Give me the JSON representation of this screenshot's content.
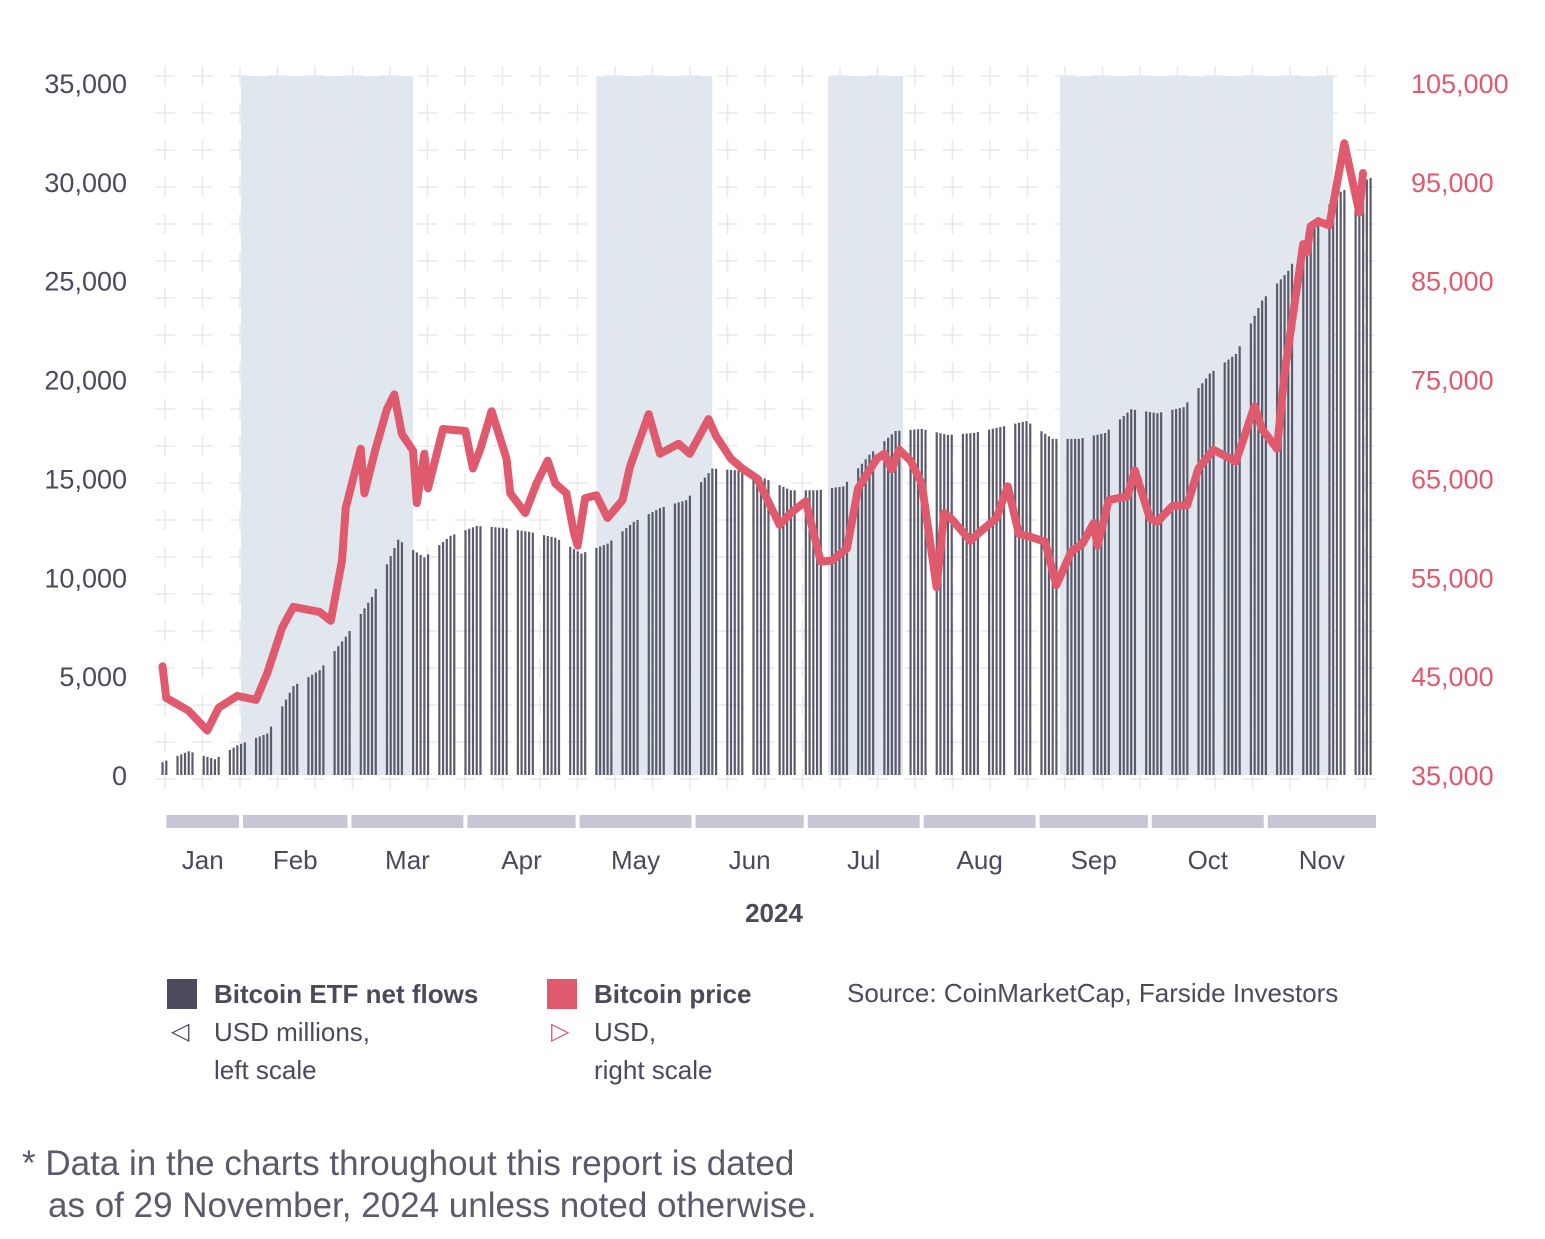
{
  "chart_data": {
    "type": "bar+line",
    "xlabel": "2024",
    "x_tick_labels": [
      "Jan",
      "Feb",
      "Mar",
      "Apr",
      "May",
      "Jun",
      "Jul",
      "Aug",
      "Sep",
      "Oct",
      "Nov"
    ],
    "left_axis": {
      "ticks": [
        "0",
        "5,000",
        "10,000",
        "15,000",
        "20,000",
        "25,000",
        "30,000",
        "35,000"
      ],
      "range": [
        0,
        35000
      ]
    },
    "right_axis": {
      "ticks": [
        "35,000",
        "45,000",
        "55,000",
        "65,000",
        "75,000",
        "85,000",
        "95,000",
        "105,000"
      ],
      "range": [
        35000,
        105000
      ]
    },
    "grid": true,
    "shaded_periods": [
      [
        "2024-02-01",
        "2024-03-18"
      ],
      [
        "2024-05-06",
        "2024-06-06"
      ],
      [
        "2024-07-07",
        "2024-07-27"
      ],
      [
        "2024-09-07",
        "2024-11-19"
      ]
    ],
    "series": [
      {
        "name": "Bitcoin ETF net flows",
        "type": "bar",
        "axis": "left",
        "color": "#5b5b6b",
        "points": [
          [
            "2024-01-11",
            650
          ],
          [
            "2024-01-18",
            1200
          ],
          [
            "2024-01-25",
            800
          ],
          [
            "2024-01-31",
            1500
          ],
          [
            "2024-02-08",
            2100
          ],
          [
            "2024-02-15",
            4500
          ],
          [
            "2024-02-22",
            5300
          ],
          [
            "2024-02-29",
            7000
          ],
          [
            "2024-03-07",
            9000
          ],
          [
            "2024-03-14",
            11900
          ],
          [
            "2024-03-21",
            11000
          ],
          [
            "2024-03-28",
            12100
          ],
          [
            "2024-04-04",
            12600
          ],
          [
            "2024-04-11",
            12500
          ],
          [
            "2024-04-18",
            12300
          ],
          [
            "2024-04-25",
            12000
          ],
          [
            "2024-05-02",
            11200
          ],
          [
            "2024-05-09",
            11700
          ],
          [
            "2024-05-16",
            12800
          ],
          [
            "2024-05-23",
            13500
          ],
          [
            "2024-05-30",
            13900
          ],
          [
            "2024-06-06",
            15500
          ],
          [
            "2024-06-13",
            15400
          ],
          [
            "2024-06-20",
            15000
          ],
          [
            "2024-06-27",
            14400
          ],
          [
            "2024-07-04",
            14400
          ],
          [
            "2024-07-11",
            14600
          ],
          [
            "2024-07-18",
            16200
          ],
          [
            "2024-07-25",
            17400
          ],
          [
            "2024-08-01",
            17500
          ],
          [
            "2024-08-08",
            17200
          ],
          [
            "2024-08-15",
            17300
          ],
          [
            "2024-08-22",
            17600
          ],
          [
            "2024-08-29",
            17900
          ],
          [
            "2024-09-05",
            17000
          ],
          [
            "2024-09-12",
            17000
          ],
          [
            "2024-09-19",
            17300
          ],
          [
            "2024-09-26",
            18500
          ],
          [
            "2024-10-03",
            18300
          ],
          [
            "2024-10-10",
            18600
          ],
          [
            "2024-10-17",
            20300
          ],
          [
            "2024-10-24",
            21300
          ],
          [
            "2024-10-31",
            24000
          ],
          [
            "2024-11-07",
            25500
          ],
          [
            "2024-11-14",
            28000
          ],
          [
            "2024-11-21",
            29500
          ],
          [
            "2024-11-29",
            30200
          ]
        ]
      },
      {
        "name": "Bitcoin price",
        "type": "line",
        "axis": "right",
        "color": "#e05a6e",
        "points": [
          [
            "2024-01-11",
            46000
          ],
          [
            "2024-01-12",
            42800
          ],
          [
            "2024-01-18",
            41500
          ],
          [
            "2024-01-23",
            39500
          ],
          [
            "2024-01-26",
            41800
          ],
          [
            "2024-01-31",
            43000
          ],
          [
            "2024-02-05",
            42600
          ],
          [
            "2024-02-08",
            45300
          ],
          [
            "2024-02-12",
            49900
          ],
          [
            "2024-02-15",
            52000
          ],
          [
            "2024-02-22",
            51500
          ],
          [
            "2024-02-25",
            50600
          ],
          [
            "2024-02-28",
            56700
          ],
          [
            "2024-02-29",
            62000
          ],
          [
            "2024-03-04",
            68000
          ],
          [
            "2024-03-05",
            63500
          ],
          [
            "2024-03-08",
            68000
          ],
          [
            "2024-03-11",
            72000
          ],
          [
            "2024-03-13",
            73500
          ],
          [
            "2024-03-15",
            69500
          ],
          [
            "2024-03-18",
            67800
          ],
          [
            "2024-03-19",
            62500
          ],
          [
            "2024-03-21",
            67500
          ],
          [
            "2024-03-22",
            64000
          ],
          [
            "2024-03-26",
            70000
          ],
          [
            "2024-04-01",
            69800
          ],
          [
            "2024-04-03",
            66000
          ],
          [
            "2024-04-05",
            68000
          ],
          [
            "2024-04-08",
            71800
          ],
          [
            "2024-04-12",
            67000
          ],
          [
            "2024-04-13",
            63500
          ],
          [
            "2024-04-17",
            61500
          ],
          [
            "2024-04-20",
            64500
          ],
          [
            "2024-04-23",
            66800
          ],
          [
            "2024-04-25",
            64500
          ],
          [
            "2024-04-28",
            63500
          ],
          [
            "2024-04-30",
            59500
          ],
          [
            "2024-05-01",
            58200
          ],
          [
            "2024-05-03",
            63000
          ],
          [
            "2024-05-06",
            63300
          ],
          [
            "2024-05-09",
            61000
          ],
          [
            "2024-05-13",
            62800
          ],
          [
            "2024-05-15",
            66200
          ],
          [
            "2024-05-20",
            71500
          ],
          [
            "2024-05-23",
            67500
          ],
          [
            "2024-05-28",
            68500
          ],
          [
            "2024-05-31",
            67500
          ],
          [
            "2024-06-05",
            71000
          ],
          [
            "2024-06-07",
            69300
          ],
          [
            "2024-06-11",
            67000
          ],
          [
            "2024-06-14",
            66000
          ],
          [
            "2024-06-18",
            65000
          ],
          [
            "2024-06-24",
            60300
          ],
          [
            "2024-06-27",
            61500
          ],
          [
            "2024-07-01",
            62700
          ],
          [
            "2024-07-05",
            56600
          ],
          [
            "2024-07-08",
            56700
          ],
          [
            "2024-07-12",
            57900
          ],
          [
            "2024-07-15",
            64000
          ],
          [
            "2024-07-20",
            67000
          ],
          [
            "2024-07-22",
            67500
          ],
          [
            "2024-07-24",
            65900
          ],
          [
            "2024-07-26",
            67900
          ],
          [
            "2024-07-29",
            66800
          ],
          [
            "2024-08-01",
            64500
          ],
          [
            "2024-08-05",
            54000
          ],
          [
            "2024-08-07",
            61500
          ],
          [
            "2024-08-09",
            60900
          ],
          [
            "2024-08-14",
            58700
          ],
          [
            "2024-08-16",
            59400
          ],
          [
            "2024-08-21",
            61000
          ],
          [
            "2024-08-24",
            64200
          ],
          [
            "2024-08-27",
            59400
          ],
          [
            "2024-08-30",
            59100
          ],
          [
            "2024-09-03",
            58600
          ],
          [
            "2024-09-06",
            54200
          ],
          [
            "2024-09-10",
            57600
          ],
          [
            "2024-09-13",
            58400
          ],
          [
            "2024-09-16",
            60500
          ],
          [
            "2024-09-17",
            58200
          ],
          [
            "2024-09-20",
            62800
          ],
          [
            "2024-09-25",
            63200
          ],
          [
            "2024-09-27",
            65800
          ],
          [
            "2024-10-01",
            61000
          ],
          [
            "2024-10-03",
            60600
          ],
          [
            "2024-10-07",
            62200
          ],
          [
            "2024-10-11",
            62300
          ],
          [
            "2024-10-14",
            66000
          ],
          [
            "2024-10-18",
            67900
          ],
          [
            "2024-10-21",
            67300
          ],
          [
            "2024-10-24",
            66700
          ],
          [
            "2024-10-29",
            72300
          ],
          [
            "2024-10-31",
            70000
          ],
          [
            "2024-11-04",
            68000
          ],
          [
            "2024-11-06",
            75600
          ],
          [
            "2024-11-11",
            88700
          ],
          [
            "2024-11-12",
            87900
          ],
          [
            "2024-11-13",
            90500
          ],
          [
            "2024-11-15",
            91000
          ],
          [
            "2024-11-18",
            90600
          ],
          [
            "2024-11-22",
            98900
          ],
          [
            "2024-11-26",
            91900
          ],
          [
            "2024-11-27",
            95900
          ]
        ]
      }
    ]
  },
  "legend": {
    "flows": {
      "title": "Bitcoin ETF net flows",
      "unit": "USD millions,",
      "scale": "left scale",
      "marker": "left-triangle-icon"
    },
    "price": {
      "title": "Bitcoin price",
      "unit": "USD,",
      "scale": "right scale",
      "marker": "right-triangle-icon"
    }
  },
  "source": "Source: CoinMarketCap, Farside Investors",
  "footnote": {
    "line1": "* Data in the charts throughout this report is dated",
    "line2": "as of 29 November, 2024 unless noted otherwise."
  },
  "colors": {
    "flows": "#5b5b6b",
    "price": "#e05a6e",
    "shade": "#e1e7ee",
    "month_bar": "#c6c6d4",
    "grid": "#e6e8ec"
  }
}
